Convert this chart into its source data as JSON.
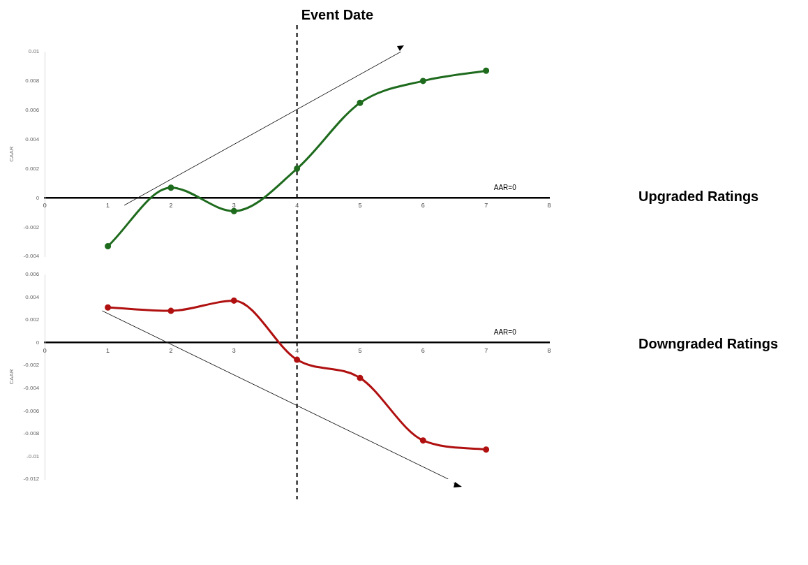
{
  "chart_data": [
    {
      "type": "line",
      "ylabel": "CAAR",
      "x": [
        1,
        2,
        3,
        4,
        5,
        6,
        7
      ],
      "series": [
        {
          "color": "#1e6b1e",
          "values": [
            -0.0033,
            0.0007,
            -0.0009,
            0.002,
            0.0065,
            0.008,
            0.0087
          ]
        },
        {
          "type": "line",
          "color": "#222222",
          "marker": "none",
          "x": [
            1.26,
            5.65
          ],
          "values": [
            -0.0005,
            0.01
          ]
        }
      ],
      "xlim": [
        0,
        8
      ],
      "xticks": [
        0,
        1,
        2,
        3,
        4,
        5,
        6,
        7,
        8
      ],
      "ylim": [
        -0.004,
        0.01
      ],
      "yticks": [
        -0.004,
        -0.002,
        0,
        0.002,
        0.004,
        0.006,
        0.008,
        0.01
      ],
      "grid": false,
      "legend": false,
      "marker": "circle",
      "line_style": "solid",
      "annotations": [
        "AAR=0",
        "Upgraded Ratings"
      ],
      "ref_lines": [
        {
          "axis": "x",
          "value": 4,
          "label": "Event Date",
          "color": "#000000",
          "line_style": "dashed"
        }
      ]
    },
    {
      "type": "line",
      "ylabel": "CAAR",
      "x": [
        1,
        2,
        3,
        4,
        5,
        6,
        7
      ],
      "series": [
        {
          "color": "#b01010",
          "values": [
            0.0031,
            0.0028,
            0.0037,
            -0.0015,
            -0.0031,
            -0.0086,
            -0.0094
          ]
        },
        {
          "type": "line",
          "color": "#222222",
          "marker": "none",
          "x": [
            0.91,
            6.4
          ],
          "values": [
            0.0028,
            -0.012
          ]
        }
      ],
      "xlim": [
        0,
        8
      ],
      "xticks": [
        0,
        1,
        2,
        3,
        4,
        5,
        6,
        7,
        8
      ],
      "ylim": [
        -0.012,
        0.006
      ],
      "yticks": [
        -0.012,
        -0.01,
        -0.008,
        -0.006,
        -0.004,
        -0.002,
        0,
        0.002,
        0.004,
        0.006
      ],
      "grid": false,
      "legend": false,
      "marker": "circle",
      "line_style": "solid",
      "annotations": [
        "AAR=0",
        "Downgraded Ratings"
      ],
      "ref_lines": [
        {
          "axis": "x",
          "value": 4,
          "color": "#000000",
          "line_style": "dashed"
        }
      ]
    }
  ]
}
